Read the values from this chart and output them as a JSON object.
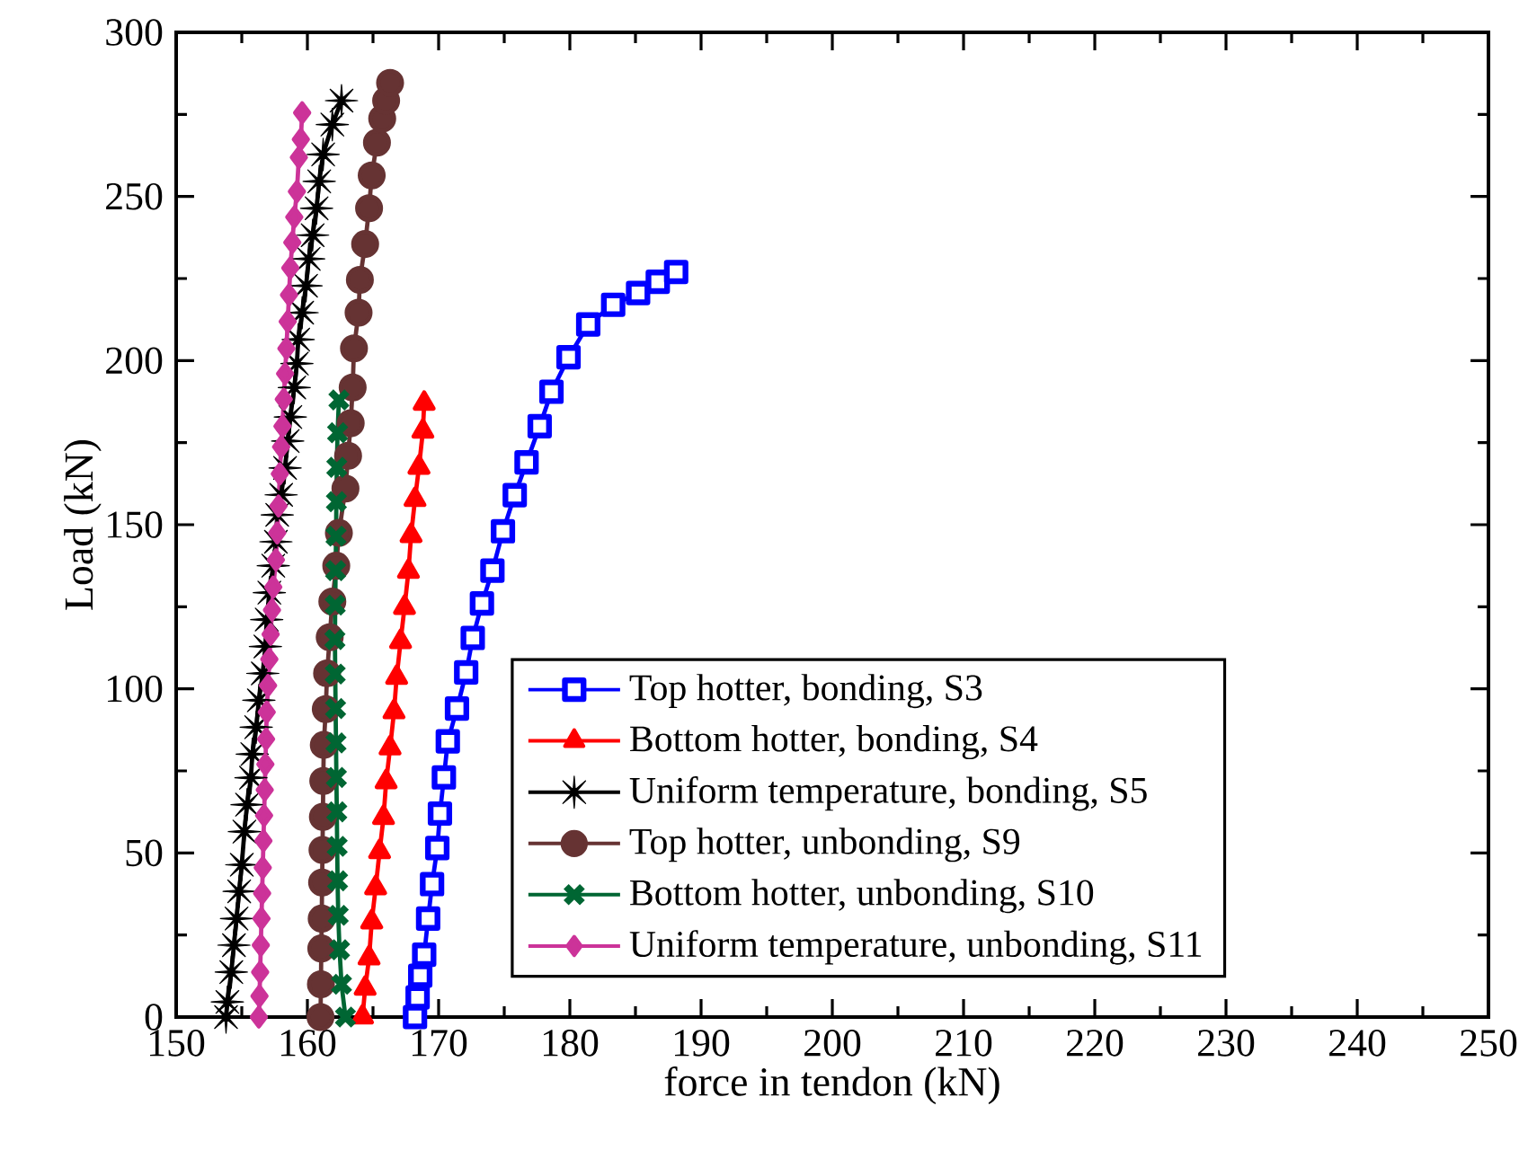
{
  "chart_data": {
    "type": "line",
    "xlabel": "force in tendon (kN)",
    "ylabel": "Load (kN)",
    "xlim": [
      150,
      250
    ],
    "ylim": [
      0,
      300
    ],
    "xticks": [
      150,
      160,
      170,
      180,
      190,
      200,
      210,
      220,
      230,
      240,
      250
    ],
    "yticks": [
      0,
      50,
      100,
      150,
      200,
      250,
      300
    ],
    "legend": "bottom right",
    "grid": false,
    "series": [
      {
        "name": "Top hotter, bonding, S3",
        "color": "#0000ff",
        "marker": "square",
        "x": [
          168.2,
          168.4,
          168.6,
          168.9,
          169.2,
          169.5,
          169.9,
          170.1,
          170.4,
          170.7,
          171.4,
          172.1,
          172.6,
          173.3,
          174.1,
          174.9,
          175.8,
          176.7,
          177.7,
          178.6,
          179.9,
          181.4,
          183.3,
          185.2,
          186.7,
          188.1
        ],
        "values": [
          0,
          6,
          12.6,
          19,
          30,
          40.5,
          51.5,
          62,
          73,
          84,
          94,
          105,
          115.5,
          126,
          136,
          148,
          159,
          169,
          180,
          190.5,
          201,
          211,
          217,
          220.6,
          224,
          227
        ]
      },
      {
        "name": "Bottom hotter, bonding, S4",
        "color": "#ff0000",
        "marker": "triangle",
        "x": [
          164.2,
          164.4,
          164.7,
          164.9,
          165.2,
          165.5,
          165.8,
          166.0,
          166.3,
          166.6,
          166.8,
          167.1,
          167.4,
          167.7,
          167.9,
          168.2,
          168.5,
          168.8,
          168.9
        ],
        "values": [
          0,
          8.8,
          18,
          29,
          39.4,
          50.4,
          60.8,
          71.7,
          82,
          93,
          103.5,
          114.4,
          124.8,
          135.8,
          146.7,
          157.7,
          167.5,
          178.5,
          187
        ]
      },
      {
        "name": "Uniform temperature, bonding, S5",
        "color": "#000000",
        "marker": "star",
        "x": [
          153.8,
          153.9,
          154.2,
          154.4,
          154.6,
          154.8,
          155.0,
          155.2,
          155.4,
          155.7,
          155.8,
          156.1,
          156.3,
          156.6,
          156.8,
          156.9,
          157.1,
          157.4,
          157.6,
          157.7,
          158.0,
          158.3,
          158.5,
          158.7,
          159.0,
          159.2,
          159.3,
          159.6,
          159.9,
          160.1,
          160.4,
          160.7,
          160.9,
          161.2,
          161.9,
          162.6
        ],
        "values": [
          0,
          4.6,
          13.7,
          21.9,
          30,
          38.3,
          46.4,
          56.5,
          64.7,
          72.9,
          80.1,
          88.3,
          96.5,
          104.7,
          112.9,
          121.1,
          129.3,
          137.5,
          144.8,
          153,
          159.1,
          167.3,
          175.5,
          182.8,
          191.8,
          199.1,
          206.4,
          214.6,
          222.8,
          231,
          238.2,
          246.4,
          254.6,
          262.8,
          271.9,
          279.2
        ]
      },
      {
        "name": "Top hotter, unbonding, S9",
        "color": "#663333",
        "marker": "circle",
        "x": [
          161.0,
          161.03,
          161.06,
          161.09,
          161.12,
          161.15,
          161.18,
          161.21,
          161.25,
          161.4,
          161.5,
          161.7,
          161.9,
          162.2,
          162.4,
          162.9,
          163.1,
          163.3,
          163.45,
          163.55,
          163.9,
          164.0,
          164.4,
          164.7,
          164.9,
          165.3,
          165.7,
          166.0,
          166.3
        ],
        "values": [
          0,
          10,
          20.9,
          30,
          41,
          50.9,
          61,
          71.9,
          82.9,
          93.8,
          104.7,
          115.7,
          126.6,
          137.5,
          147.5,
          161,
          171,
          180.9,
          191.8,
          203.7,
          214.6,
          224.6,
          235.5,
          246.4,
          256.4,
          266.4,
          273.7,
          279.2,
          284.6
        ]
      },
      {
        "name": "Bottom hotter, unbonding, S10",
        "color": "#006633",
        "marker": "cross",
        "x": [
          162.9,
          162.6,
          162.45,
          162.35,
          162.3,
          162.27,
          162.24,
          162.21,
          162.18,
          162.15,
          162.12,
          162.1,
          162.12,
          162.15,
          162.18,
          162.21,
          162.24,
          162.3,
          162.4
        ],
        "values": [
          0,
          10,
          20.5,
          31,
          41.5,
          52,
          62.5,
          73,
          83.5,
          94,
          104.5,
          115,
          125.5,
          136,
          146.5,
          157,
          167.5,
          178,
          188
        ]
      },
      {
        "name": "Uniform temperature, unbonding, S11",
        "color": "#cc3399",
        "marker": "diamond",
        "x": [
          156.3,
          156.35,
          156.4,
          156.45,
          156.5,
          156.55,
          156.6,
          156.65,
          156.7,
          156.75,
          156.8,
          156.85,
          156.9,
          157.0,
          157.1,
          157.2,
          157.3,
          157.4,
          157.6,
          157.7,
          157.8,
          157.9,
          158.0,
          158.1,
          158.2,
          158.3,
          158.4,
          158.5,
          158.6,
          158.7,
          158.85,
          159.0,
          159.2,
          159.35,
          159.5,
          159.6
        ],
        "values": [
          0,
          6.4,
          13.7,
          21.9,
          30,
          37.7,
          45.5,
          53.7,
          61.4,
          69.2,
          77,
          84.7,
          92.9,
          101,
          109,
          116.6,
          124,
          131,
          139.3,
          147.5,
          155.7,
          165.5,
          173.7,
          180,
          188.2,
          196,
          203.7,
          211.9,
          220,
          228.2,
          236,
          243.7,
          251.5,
          261.9,
          267.4,
          275.5
        ]
      }
    ]
  }
}
